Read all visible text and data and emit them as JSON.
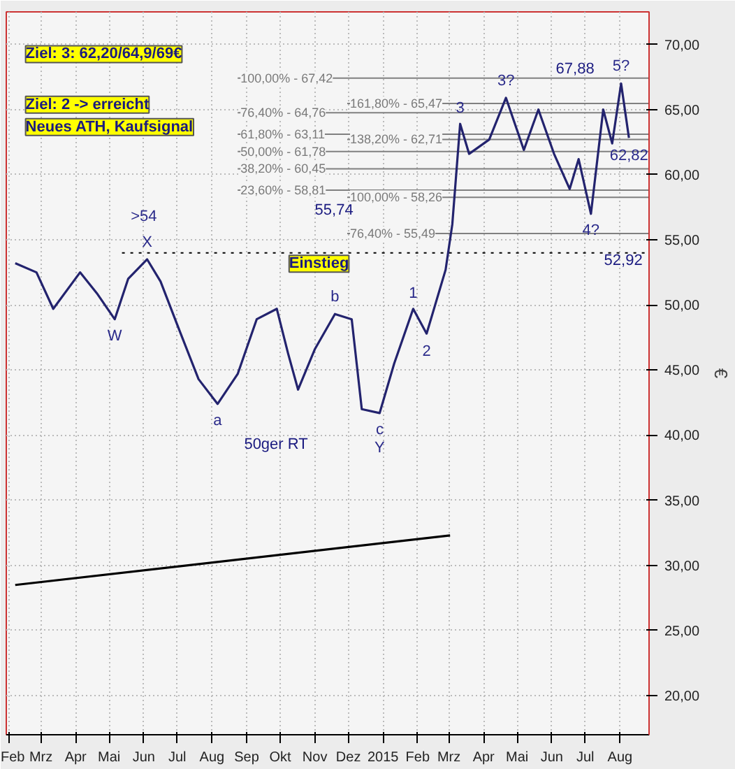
{
  "chart_data": {
    "type": "line",
    "ylabel": "€",
    "x": [
      "2014-02-06",
      "2014-02-25",
      "2014-03-12",
      "2014-04-05",
      "2014-04-20",
      "2014-05-06",
      "2014-05-18",
      "2014-06-04",
      "2014-06-16",
      "2014-07-04",
      "2014-07-20",
      "2014-08-06",
      "2014-08-24",
      "2014-09-10",
      "2014-09-28",
      "2014-10-08",
      "2014-10-17",
      "2014-11-01",
      "2014-11-19",
      "2014-12-04",
      "2014-12-13",
      "2014-12-29",
      "2015-01-11",
      "2015-01-28",
      "2015-02-09",
      "2015-02-26",
      "2015-03-04",
      "2015-03-11",
      "2015-03-19",
      "2015-04-06",
      "2015-04-21",
      "2015-05-07",
      "2015-05-20",
      "2015-06-03",
      "2015-06-17",
      "2015-06-25",
      "2015-07-06",
      "2015-07-17",
      "2015-07-25",
      "2015-08-02",
      "2015-08-09"
    ],
    "series": [
      {
        "color": "#23236e",
        "values": [
          53.2,
          52.5,
          49.7,
          52.5,
          50.9,
          48.9,
          52,
          53.5,
          51.8,
          47.8,
          44.3,
          42.4,
          44.7,
          48.9,
          49.7,
          46.3,
          43.5,
          46.6,
          49.3,
          48.9,
          42,
          41.7,
          45.5,
          49.7,
          47.8,
          52.7,
          56.2,
          63.9,
          61.6,
          62.7,
          65.9,
          61.9,
          65,
          61.6,
          58.9,
          61.2,
          57,
          65,
          62.4,
          67,
          62.82
        ]
      },
      {
        "type": "line",
        "color": "#000000",
        "x": [
          "2014-02-06",
          "2015-03-02"
        ],
        "values": [
          28.5,
          32.3
        ]
      }
    ],
    "xlim": [
      "2014-01-29",
      "2015-08-27"
    ],
    "ylim": [
      17,
      72.5
    ],
    "xticks": [
      {
        "value": "2014-02-01",
        "label": "Feb"
      },
      {
        "value": "2014-03-01",
        "label": "Mrz"
      },
      {
        "value": "2014-04-01",
        "label": "Apr"
      },
      {
        "value": "2014-05-01",
        "label": "Mai"
      },
      {
        "value": "2014-06-01",
        "label": "Jun"
      },
      {
        "value": "2014-07-01",
        "label": "Jul"
      },
      {
        "value": "2014-08-01",
        "label": "Aug"
      },
      {
        "value": "2014-09-01",
        "label": "Sep"
      },
      {
        "value": "2014-10-01",
        "label": "Okt"
      },
      {
        "value": "2014-11-01",
        "label": "Nov"
      },
      {
        "value": "2014-12-01",
        "label": "Dez"
      },
      {
        "value": "2015-01-01",
        "label": "2015"
      },
      {
        "value": "2015-02-01",
        "label": "Feb"
      },
      {
        "value": "2015-03-01",
        "label": "Mrz"
      },
      {
        "value": "2015-04-01",
        "label": "Apr"
      },
      {
        "value": "2015-05-01",
        "label": "Mai"
      },
      {
        "value": "2015-06-01",
        "label": "Jun"
      },
      {
        "value": "2015-07-01",
        "label": "Jul"
      },
      {
        "value": "2015-08-01",
        "label": "Aug"
      }
    ],
    "yticks": [
      {
        "value": 20,
        "label": "20,00"
      },
      {
        "value": 25,
        "label": "25,00"
      },
      {
        "value": 30,
        "label": "30,00"
      },
      {
        "value": 35,
        "label": "35,00"
      },
      {
        "value": 40,
        "label": "40,00"
      },
      {
        "value": 45,
        "label": "45,00"
      },
      {
        "value": 50,
        "label": "50,00"
      },
      {
        "value": 55,
        "label": "55,00"
      },
      {
        "value": 60,
        "label": "60,00"
      },
      {
        "value": 65,
        "label": "65,00"
      },
      {
        "value": 70,
        "label": "70,00"
      }
    ],
    "grid": true,
    "ref_lines": [
      {
        "axis": "y",
        "value": 67.42,
        "color": "#808080"
      },
      {
        "axis": "y",
        "value": 64.76,
        "color": "#808080"
      },
      {
        "axis": "y",
        "value": 63.11,
        "color": "#808080"
      },
      {
        "axis": "y",
        "value": 61.78,
        "color": "#808080"
      },
      {
        "axis": "y",
        "value": 60.45,
        "color": "#808080"
      },
      {
        "axis": "y",
        "value": 58.81,
        "color": "#808080"
      },
      {
        "axis": "y",
        "value": 65.47,
        "color": "#808080"
      },
      {
        "axis": "y",
        "value": 62.71,
        "color": "#808080"
      },
      {
        "axis": "y",
        "value": 58.26,
        "color": "#808080"
      },
      {
        "axis": "y",
        "value": 55.49,
        "color": "#808080"
      },
      {
        "axis": "y",
        "value": 54,
        "color": "#000000",
        "line_style": "dotted"
      }
    ],
    "annotations": [
      "Ziel: 3: 62,20/64,9/69€",
      "Ziel: 2 -> erreicht\nNeues ATH, Kaufsignal",
      "Einstieg",
      "50ger RT",
      "55,74",
      "52,92",
      "67,88",
      {
        "text": "100,00% - 67,42",
        "x": "2014-08-24",
        "y": 67.42
      },
      {
        "text": "76,40% - 64,76",
        "x": "2014-08-24",
        "y": 64.76
      },
      {
        "text": "61,80% - 63,11",
        "x": "2014-08-24",
        "y": 63.11
      },
      {
        "text": "50,00% - 61,78",
        "x": "2014-08-24",
        "y": 61.78
      },
      {
        "text": "38,20% - 60,45",
        "x": "2014-08-24",
        "y": 60.45
      },
      {
        "text": "23,60% - 58,81",
        "x": "2014-08-24",
        "y": 58.81
      },
      {
        "text": "161,80% - 65,47",
        "x": "2014-11-30",
        "y": 65.47
      },
      {
        "text": "138,20% - 62,71",
        "x": "2014-11-30",
        "y": 62.71
      },
      {
        "text": "100,00% - 58,26",
        "x": "2014-11-30",
        "y": 58.26
      },
      {
        "text": "76,40% - 55,49",
        "x": "2014-11-30",
        "y": 55.49
      },
      {
        "text": ">54",
        "x": "2014-06-01",
        "y": 54
      },
      {
        "text": "W",
        "x": "2014-05-06",
        "y": 48.9
      },
      {
        "text": "X",
        "x": "2014-06-04",
        "y": 53.5
      },
      {
        "text": "a",
        "x": "2014-08-06",
        "y": 42.4
      },
      {
        "text": "b",
        "x": "2014-11-19",
        "y": 49.3
      },
      {
        "text": "c",
        "x": "2014-12-29",
        "y": 41.7
      },
      {
        "text": "Y",
        "x": "2014-12-29",
        "y": 41.7
      },
      {
        "text": "1",
        "x": "2015-01-28",
        "y": 49.7
      },
      {
        "text": "2",
        "x": "2015-02-09",
        "y": 47.8
      },
      {
        "text": "3",
        "x": "2015-03-11",
        "y": 63.9
      },
      {
        "text": "3?",
        "x": "2015-04-21",
        "y": 65.9
      },
      {
        "text": "4?",
        "x": "2015-07-06",
        "y": 57
      },
      {
        "text": "5?",
        "x": "2015-08-02",
        "y": 67
      },
      {
        "text": "62,82",
        "x": "2015-08-09",
        "y": 62.82
      }
    ]
  }
}
